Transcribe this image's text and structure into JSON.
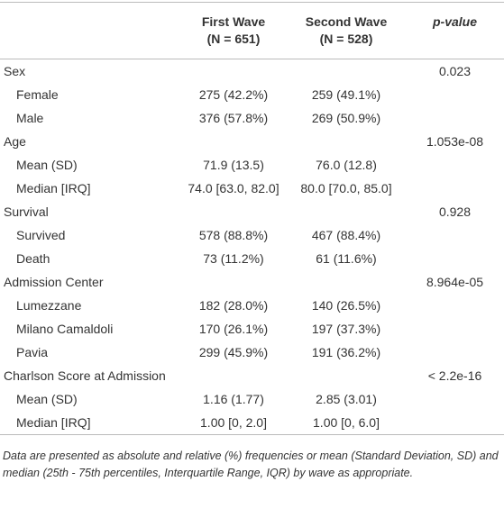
{
  "header": {
    "columns": [
      {
        "title": "First Wave",
        "subtitle": "(N = 651)"
      },
      {
        "title": "Second Wave",
        "subtitle": "(N = 528)"
      },
      {
        "title": "p-value"
      }
    ]
  },
  "table": {
    "groups": [
      {
        "label": "Sex",
        "p_value": "0.023",
        "rows": [
          {
            "label": "Female",
            "first": "275 (42.2%)",
            "second": "259 (49.1%)"
          },
          {
            "label": "Male",
            "first": "376 (57.8%)",
            "second": "269 (50.9%)"
          }
        ]
      },
      {
        "label": "Age",
        "p_value": "1.053e-08",
        "rows": [
          {
            "label": "Mean (SD)",
            "first": "71.9 (13.5)",
            "second": "76.0 (12.8)"
          },
          {
            "label": "Median [IRQ]",
            "first": "74.0 [63.0, 82.0]",
            "second": "80.0 [70.0, 85.0]"
          }
        ]
      },
      {
        "label": "Survival",
        "p_value": "0.928",
        "rows": [
          {
            "label": "Survived",
            "first": "578 (88.8%)",
            "second": "467 (88.4%)"
          },
          {
            "label": "Death",
            "first": "73 (11.2%)",
            "second": "61 (11.6%)"
          }
        ]
      },
      {
        "label": "Admission Center",
        "p_value": "8.964e-05",
        "rows": [
          {
            "label": "Lumezzane",
            "first": "182 (28.0%)",
            "second": "140 (26.5%)"
          },
          {
            "label": "Milano Camaldoli",
            "first": "170 (26.1%)",
            "second": "197 (37.3%)"
          },
          {
            "label": "Pavia",
            "first": "299 (45.9%)",
            "second": "191 (36.2%)"
          }
        ]
      },
      {
        "label": "Charlson Score at Admission",
        "p_value": "< 2.2e-16",
        "rows": [
          {
            "label": "Mean (SD)",
            "first": "1.16 (1.77)",
            "second": "2.85 (3.01)"
          },
          {
            "label": "Median [IRQ]",
            "first": "1.00 [0, 2.0]",
            "second": "1.00 [0, 6.0]"
          }
        ]
      }
    ]
  },
  "footnote": "Data are presented as absolute and relative (%) frequencies or mean (Standard Deviation, SD) and median (25th - 75th percentiles, Interquartile Range, IQR) by wave as appropriate."
}
